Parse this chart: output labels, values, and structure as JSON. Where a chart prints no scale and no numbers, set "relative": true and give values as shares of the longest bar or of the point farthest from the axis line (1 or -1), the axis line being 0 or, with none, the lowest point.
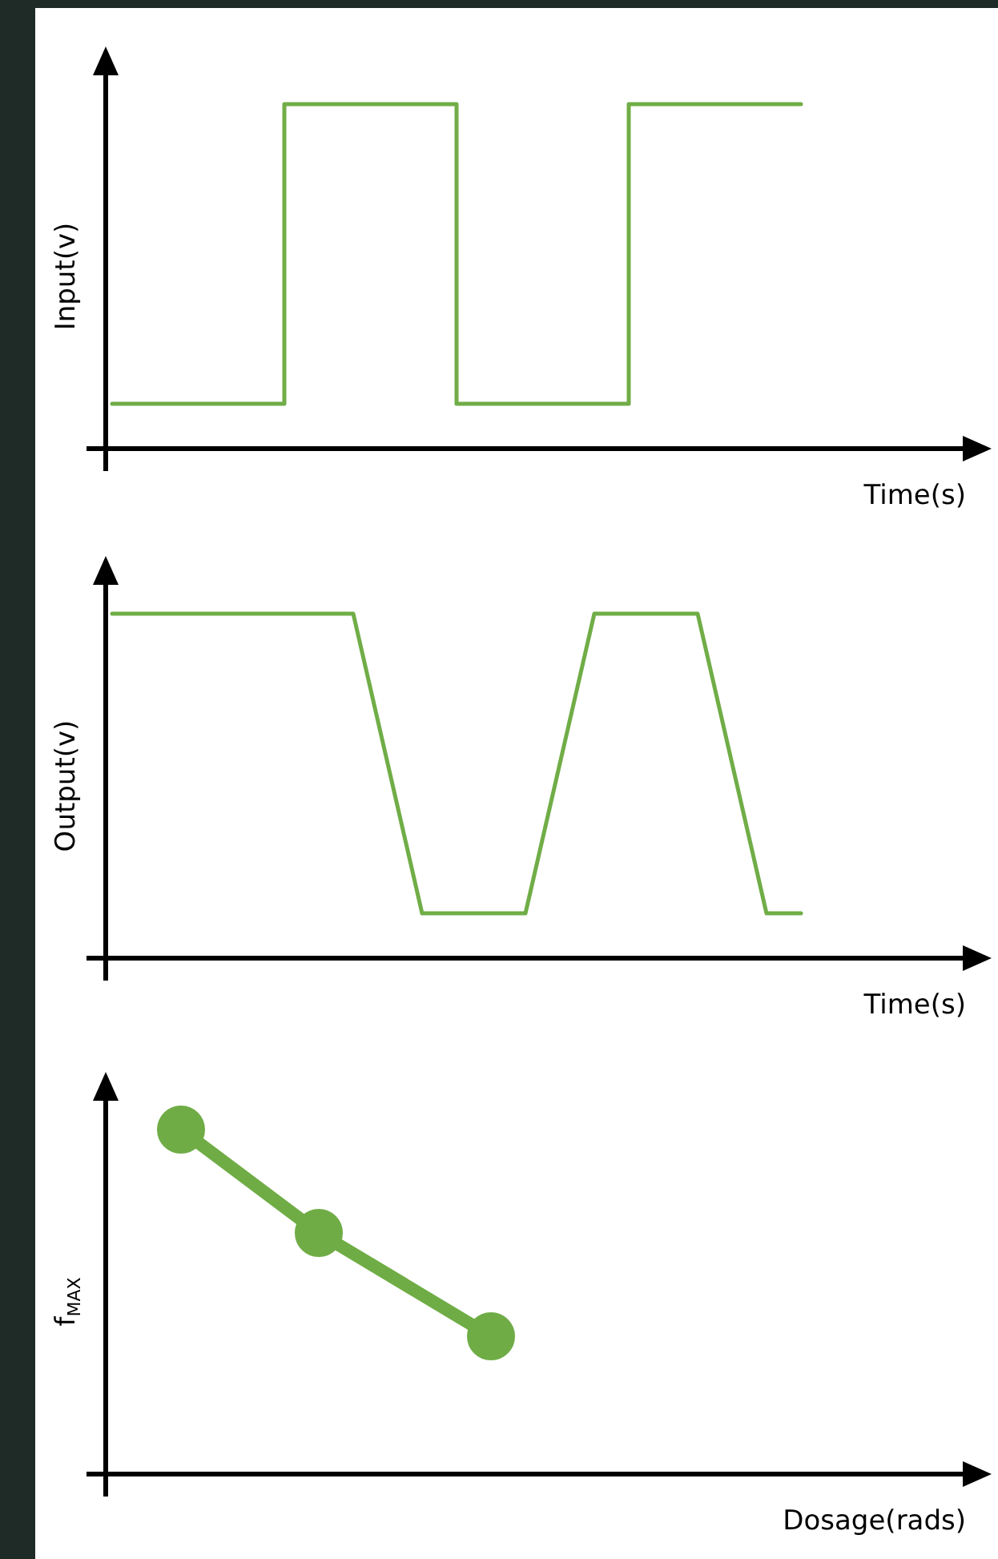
{
  "chart_data": [
    {
      "type": "step",
      "ylabel": "Input(v)",
      "xlabel": "Time(s)",
      "categories": [
        null,
        null,
        null,
        null,
        null
      ],
      "values": [
        0.13,
        1,
        0.13,
        1,
        1
      ],
      "color": "#70ad47",
      "relative": true,
      "marker": "none"
    },
    {
      "type": "line",
      "ylabel": "Output(v)",
      "xlabel": "Time(s)",
      "categories": [
        null,
        null,
        null,
        null,
        null,
        null,
        null,
        null,
        null,
        null,
        null,
        null,
        null,
        null,
        null,
        null,
        null,
        null,
        null,
        null,
        null
      ],
      "values": [
        1,
        null,
        null,
        null,
        null,
        null,
        null,
        1,
        null,
        0.13,
        null,
        null,
        0.13,
        null,
        1,
        null,
        null,
        1,
        null,
        0.13,
        0.13
      ],
      "color": "#70ad47",
      "relative": true,
      "marker": "none"
    },
    {
      "type": "line",
      "ylabel": "f$_{MAX}$",
      "xlabel": "Dosage(rads)",
      "categories": [
        null,
        null,
        null,
        null,
        null,
        null,
        null,
        null,
        null,
        null,
        null,
        null,
        null,
        null,
        null,
        null,
        null,
        null,
        null,
        null,
        null
      ],
      "values": [
        null,
        null,
        1,
        null,
        null,
        null,
        0.7,
        null,
        null,
        null,
        null,
        0.4,
        null,
        null,
        null,
        null,
        null,
        null,
        null,
        null,
        null
      ],
      "color": "#6fac46",
      "relative": true,
      "marker": "circle"
    }
  ]
}
